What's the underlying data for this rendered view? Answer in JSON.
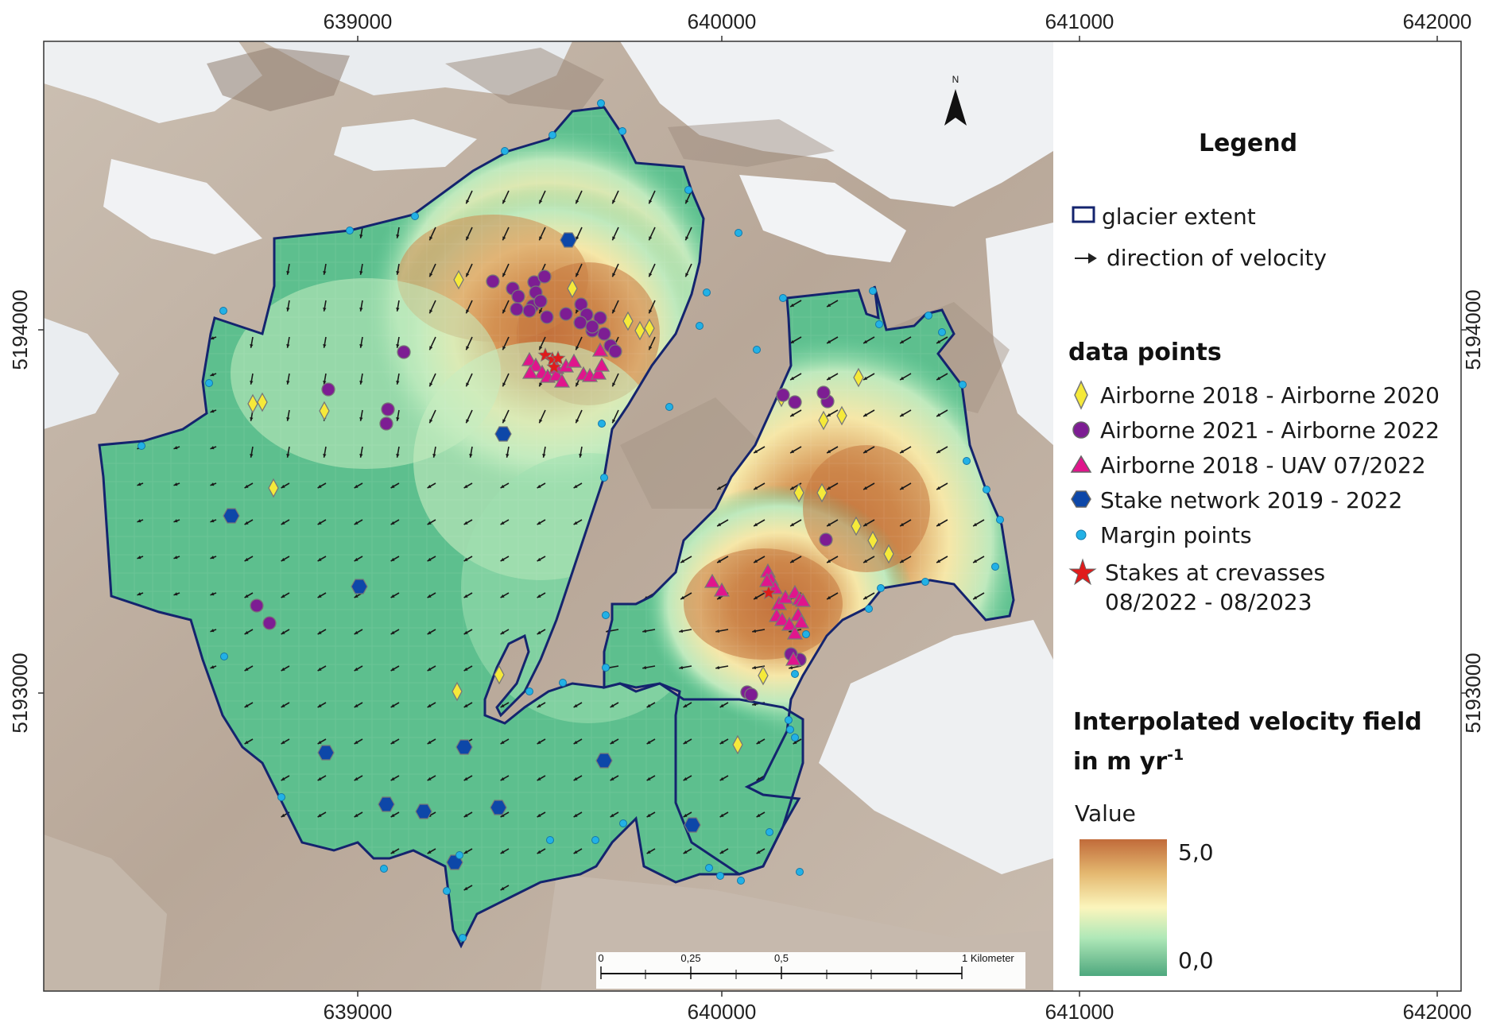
{
  "axes": {
    "x_ticks": [
      "639000",
      "640000",
      "641000",
      "642000"
    ],
    "y_ticks": [
      "5194000",
      "5193000"
    ]
  },
  "north_arrow": {
    "label": "N",
    "icon": "north-arrow-icon"
  },
  "legend": {
    "title": "Legend",
    "glacier_extent": "glacier extent",
    "direction": "direction of velocity",
    "data_points_heading": "data points",
    "items": [
      {
        "label": "Airborne 2018 - Airborne 2020",
        "icon": "yellow-diamond-icon",
        "color": "#f5e93a"
      },
      {
        "label": "Airborne 2021 - Airborne 2022",
        "icon": "purple-circle-icon",
        "color": "#7d1d93"
      },
      {
        "label": "Airborne 2018 - UAV 07/2022",
        "icon": "magenta-triangle-icon",
        "color": "#e0158c"
      },
      {
        "label": "Stake network 2019 - 2022",
        "icon": "blue-hexagon-icon",
        "color": "#0d47a8"
      },
      {
        "label": "Margin points",
        "icon": "cyan-dot-icon",
        "color": "#22b1e6"
      },
      {
        "label": "Stakes at crevasses",
        "label2": "08/2022 - 08/2023",
        "icon": "red-star-icon",
        "color": "#e01b1b"
      }
    ]
  },
  "velocity_legend": {
    "title_line1": "Interpolated velocity field",
    "title_line2": "in m yr",
    "title_sup": "-1",
    "value_label": "Value",
    "max_label": "5,0",
    "min_label": "0,0",
    "colors": [
      "#4ea87e",
      "#66cc9a",
      "#b0e8b8",
      "#fbf5bc",
      "#e4b870",
      "#c16b3a"
    ]
  },
  "scalebar": {
    "labels": [
      "0",
      "0,25",
      "0,5",
      "1 Kilometer"
    ]
  }
}
